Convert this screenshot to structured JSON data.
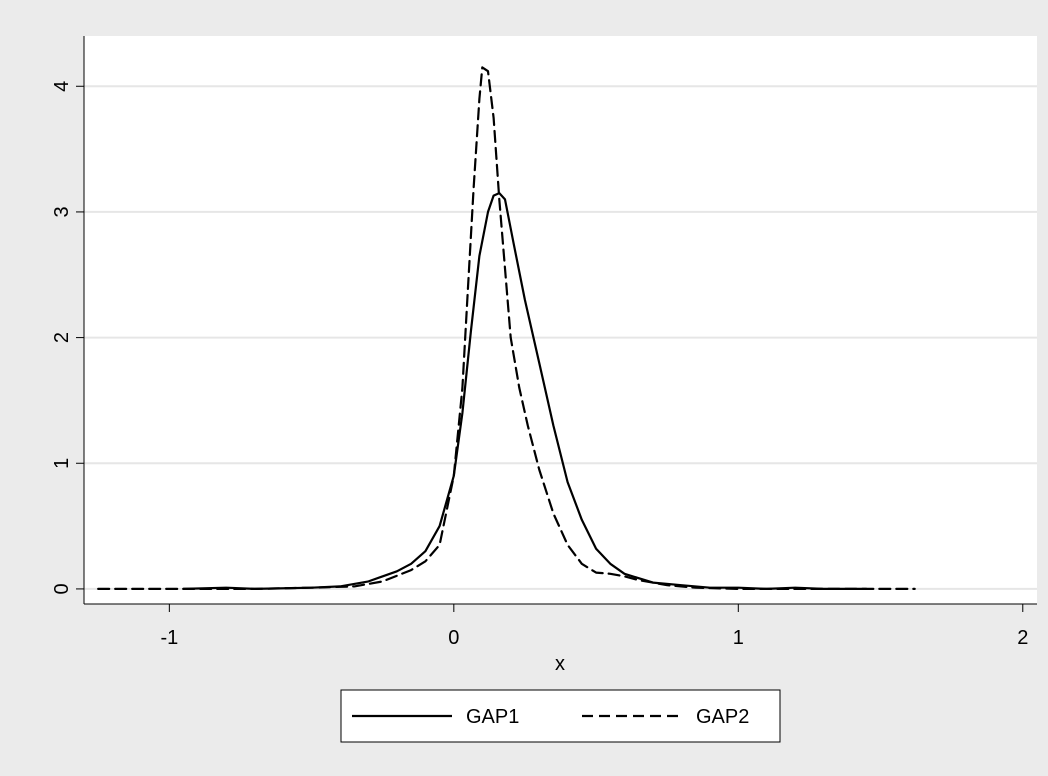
{
  "chart_data": {
    "type": "line",
    "title": "",
    "xlabel": "x",
    "ylabel": "",
    "xlim": [
      -1.3,
      2.05
    ],
    "ylim": [
      -0.12,
      4.4
    ],
    "xticks": [
      -1,
      0,
      1,
      2
    ],
    "yticks": [
      0,
      1,
      2,
      3,
      4
    ],
    "grid": "horizontal",
    "legend_position": "bottom",
    "series": [
      {
        "name": "GAP1",
        "line_style": "solid",
        "color": "#000000",
        "x": [
          -0.95,
          -0.8,
          -0.7,
          -0.5,
          -0.4,
          -0.3,
          -0.2,
          -0.15,
          -0.1,
          -0.05,
          0.0,
          0.03,
          0.06,
          0.09,
          0.12,
          0.14,
          0.16,
          0.18,
          0.21,
          0.25,
          0.3,
          0.35,
          0.4,
          0.45,
          0.5,
          0.55,
          0.6,
          0.7,
          0.8,
          0.9,
          1.0,
          1.1,
          1.2,
          1.3,
          1.45
        ],
        "y": [
          0.0,
          0.01,
          0.0,
          0.01,
          0.02,
          0.06,
          0.14,
          0.2,
          0.3,
          0.5,
          0.9,
          1.4,
          2.05,
          2.65,
          3.0,
          3.13,
          3.15,
          3.1,
          2.75,
          2.3,
          1.8,
          1.3,
          0.85,
          0.55,
          0.32,
          0.2,
          0.12,
          0.05,
          0.03,
          0.01,
          0.01,
          0.0,
          0.01,
          0.0,
          0.0
        ]
      },
      {
        "name": "GAP2",
        "line_style": "dashed",
        "color": "#000000",
        "x": [
          -1.25,
          -1.0,
          -0.7,
          -0.5,
          -0.35,
          -0.25,
          -0.15,
          -0.1,
          -0.05,
          0.0,
          0.03,
          0.05,
          0.07,
          0.09,
          0.1,
          0.12,
          0.14,
          0.16,
          0.18,
          0.2,
          0.23,
          0.26,
          0.3,
          0.35,
          0.4,
          0.45,
          0.5,
          0.55,
          0.6,
          0.65,
          0.75,
          0.85,
          1.0,
          1.2,
          1.4,
          1.62
        ],
        "y": [
          0.0,
          0.0,
          0.0,
          0.01,
          0.02,
          0.06,
          0.15,
          0.22,
          0.35,
          0.9,
          1.6,
          2.4,
          3.2,
          3.9,
          4.15,
          4.12,
          3.75,
          3.1,
          2.55,
          2.0,
          1.6,
          1.3,
          0.95,
          0.6,
          0.35,
          0.2,
          0.13,
          0.12,
          0.1,
          0.07,
          0.03,
          0.01,
          0.0,
          0.0,
          0.0,
          0.0
        ]
      }
    ]
  }
}
